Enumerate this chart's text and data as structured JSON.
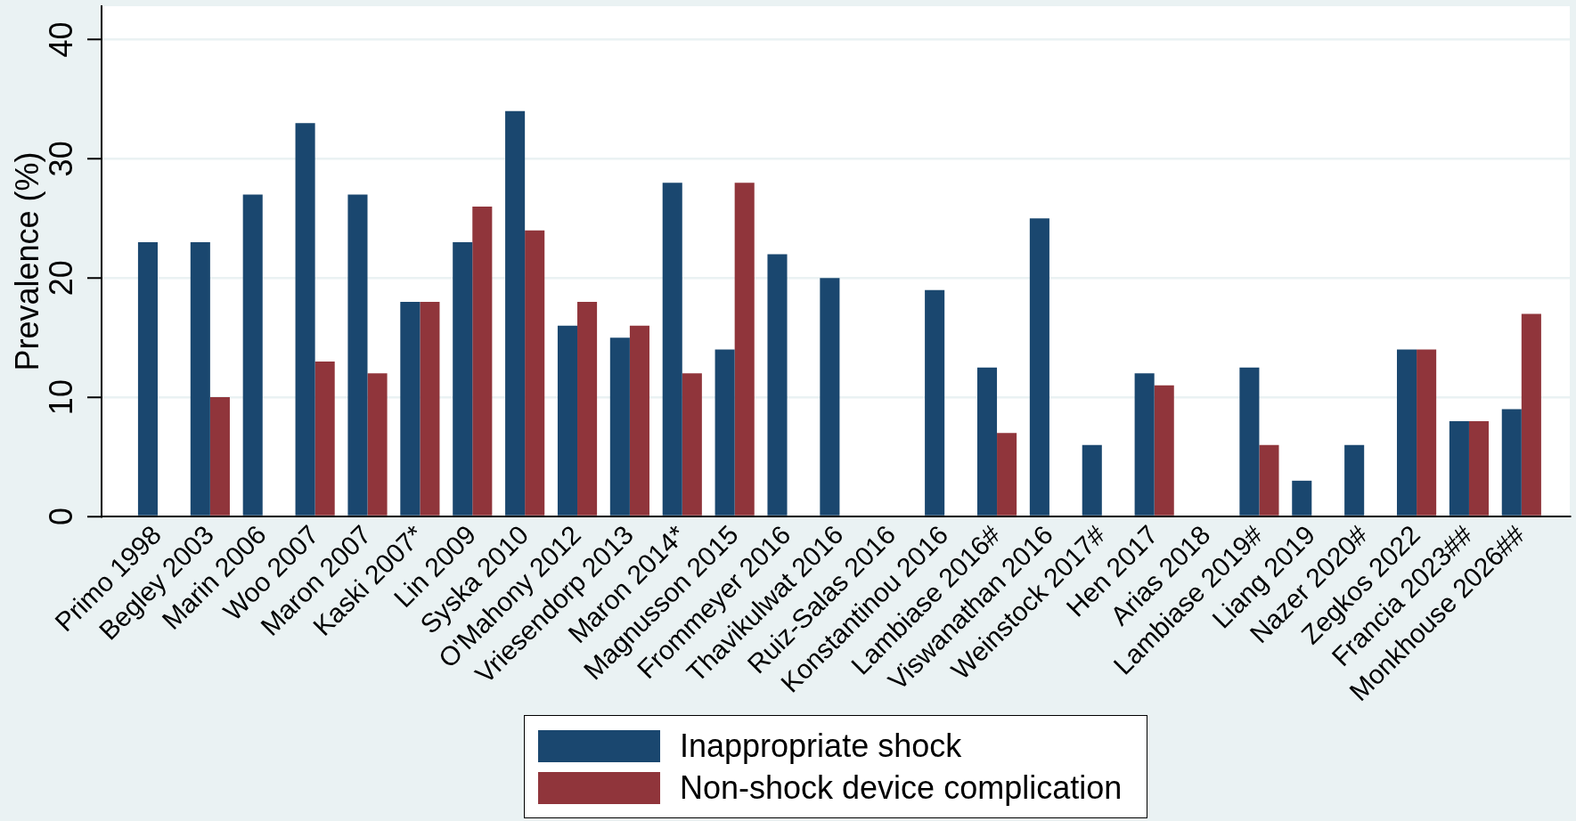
{
  "chart_data": {
    "type": "bar",
    "ylabel": "Prevalence (%)",
    "categories": [
      "Primo 1998",
      "Begley 2003",
      "Marin 2006",
      "Woo 2007",
      "Maron 2007",
      "Kaski 2007*",
      "Lin 2009",
      "Syska 2010",
      "O'Mahony 2012",
      "Vriesendorp 2013",
      "Maron 2014*",
      "Magnusson 2015",
      "Frommeyer 2016",
      "Thavikulwat 2016",
      "Ruiz-Salas 2016",
      "Konstantinou 2016",
      "Lambiase 2016#",
      "Viswanathan 2016",
      "Weinstock 2017#",
      "Hen 2017",
      "Arias 2018",
      "Lambiase 2019#",
      "Liang 2019",
      "Nazer 2020#",
      "Zegkos 2022",
      "Francia 2023##",
      "Monkhouse 2026##"
    ],
    "series": [
      {
        "name": "Inappropriate shock",
        "color": "#1a476f",
        "values": [
          23,
          23,
          27,
          33,
          27,
          18,
          23,
          34,
          16,
          15,
          28,
          14,
          22,
          20,
          null,
          19,
          12.5,
          25,
          6,
          12,
          null,
          12.5,
          3,
          6,
          14,
          8,
          9
        ]
      },
      {
        "name": "Non-shock device complication",
        "color": "#90353b",
        "values": [
          null,
          10,
          null,
          13,
          12,
          18,
          26,
          24,
          18,
          16,
          12,
          28,
          null,
          null,
          null,
          null,
          7,
          null,
          null,
          11,
          null,
          6,
          null,
          null,
          14,
          8,
          17
        ]
      }
    ],
    "ylim": [
      0,
      42.8
    ],
    "yticks": [
      0,
      10,
      20,
      30,
      40
    ],
    "grid": "y",
    "legend": "bottom"
  }
}
